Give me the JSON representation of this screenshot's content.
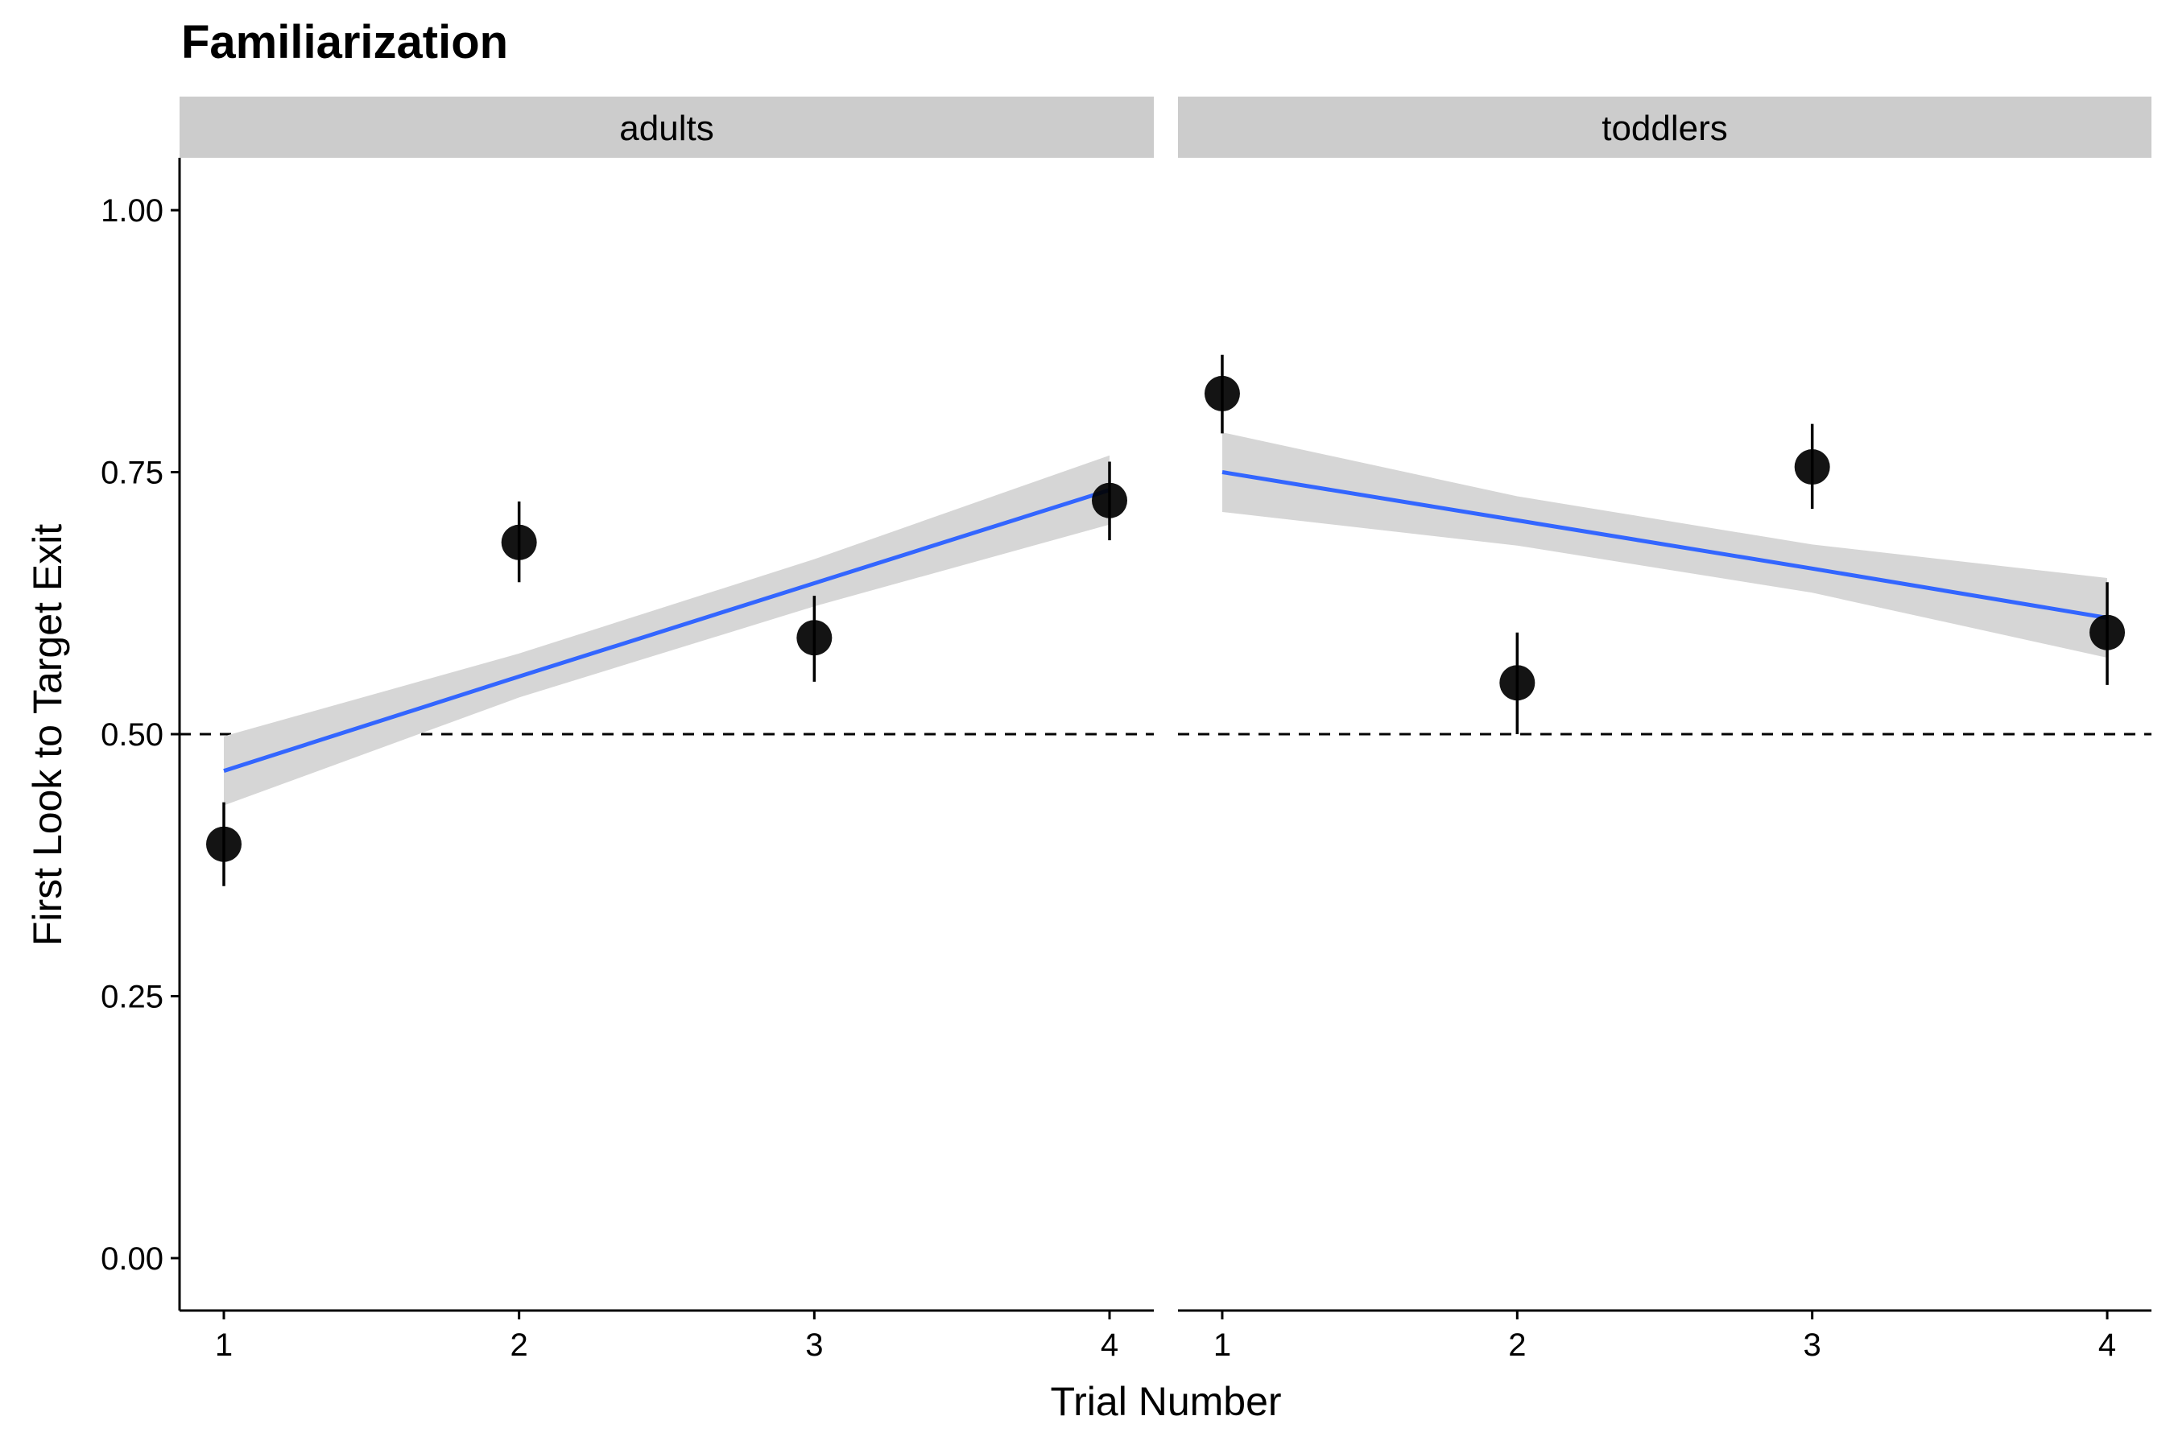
{
  "chart_data": {
    "type": "scatter",
    "title": "Familiarization",
    "xlabel": "Trial Number",
    "ylabel": "First Look to Target Exit",
    "xlim": [
      0.85,
      4.15
    ],
    "ylim": [
      -0.05,
      1.05
    ],
    "x_ticks": [
      "1",
      "2",
      "3",
      "4"
    ],
    "y_ticks": [
      "0.00",
      "0.25",
      "0.50",
      "0.75",
      "1.00"
    ],
    "reference_line": {
      "y": 0.5,
      "style": "dashed"
    },
    "grid": false,
    "point_color": "#000000",
    "fit_line_color": "#3366FF",
    "ribbon_color": "#D6D6D6",
    "strip_color": "#CCCCCC",
    "panels": [
      {
        "label": "adults",
        "points": [
          {
            "x": 1,
            "y": 0.395,
            "ymin": 0.355,
            "ymax": 0.435
          },
          {
            "x": 2,
            "y": 0.683,
            "ymin": 0.645,
            "ymax": 0.722
          },
          {
            "x": 3,
            "y": 0.592,
            "ymin": 0.55,
            "ymax": 0.632
          },
          {
            "x": 4,
            "y": 0.723,
            "ymin": 0.685,
            "ymax": 0.76
          }
        ],
        "fit": {
          "x": [
            1,
            2,
            3,
            4
          ],
          "y": [
            0.465,
            0.555,
            0.644,
            0.733
          ],
          "lower": [
            0.432,
            0.535,
            0.622,
            0.7
          ],
          "upper": [
            0.498,
            0.577,
            0.667,
            0.766
          ]
        }
      },
      {
        "label": "toddlers",
        "points": [
          {
            "x": 1,
            "y": 0.825,
            "ymin": 0.787,
            "ymax": 0.862
          },
          {
            "x": 2,
            "y": 0.549,
            "ymin": 0.5,
            "ymax": 0.597
          },
          {
            "x": 3,
            "y": 0.755,
            "ymin": 0.715,
            "ymax": 0.796
          },
          {
            "x": 4,
            "y": 0.597,
            "ymin": 0.547,
            "ymax": 0.645
          }
        ],
        "fit": {
          "x": [
            1,
            2,
            3,
            4
          ],
          "y": [
            0.75,
            0.704,
            0.658,
            0.611
          ],
          "lower": [
            0.712,
            0.68,
            0.635,
            0.573
          ],
          "upper": [
            0.788,
            0.727,
            0.681,
            0.649
          ]
        }
      }
    ]
  }
}
